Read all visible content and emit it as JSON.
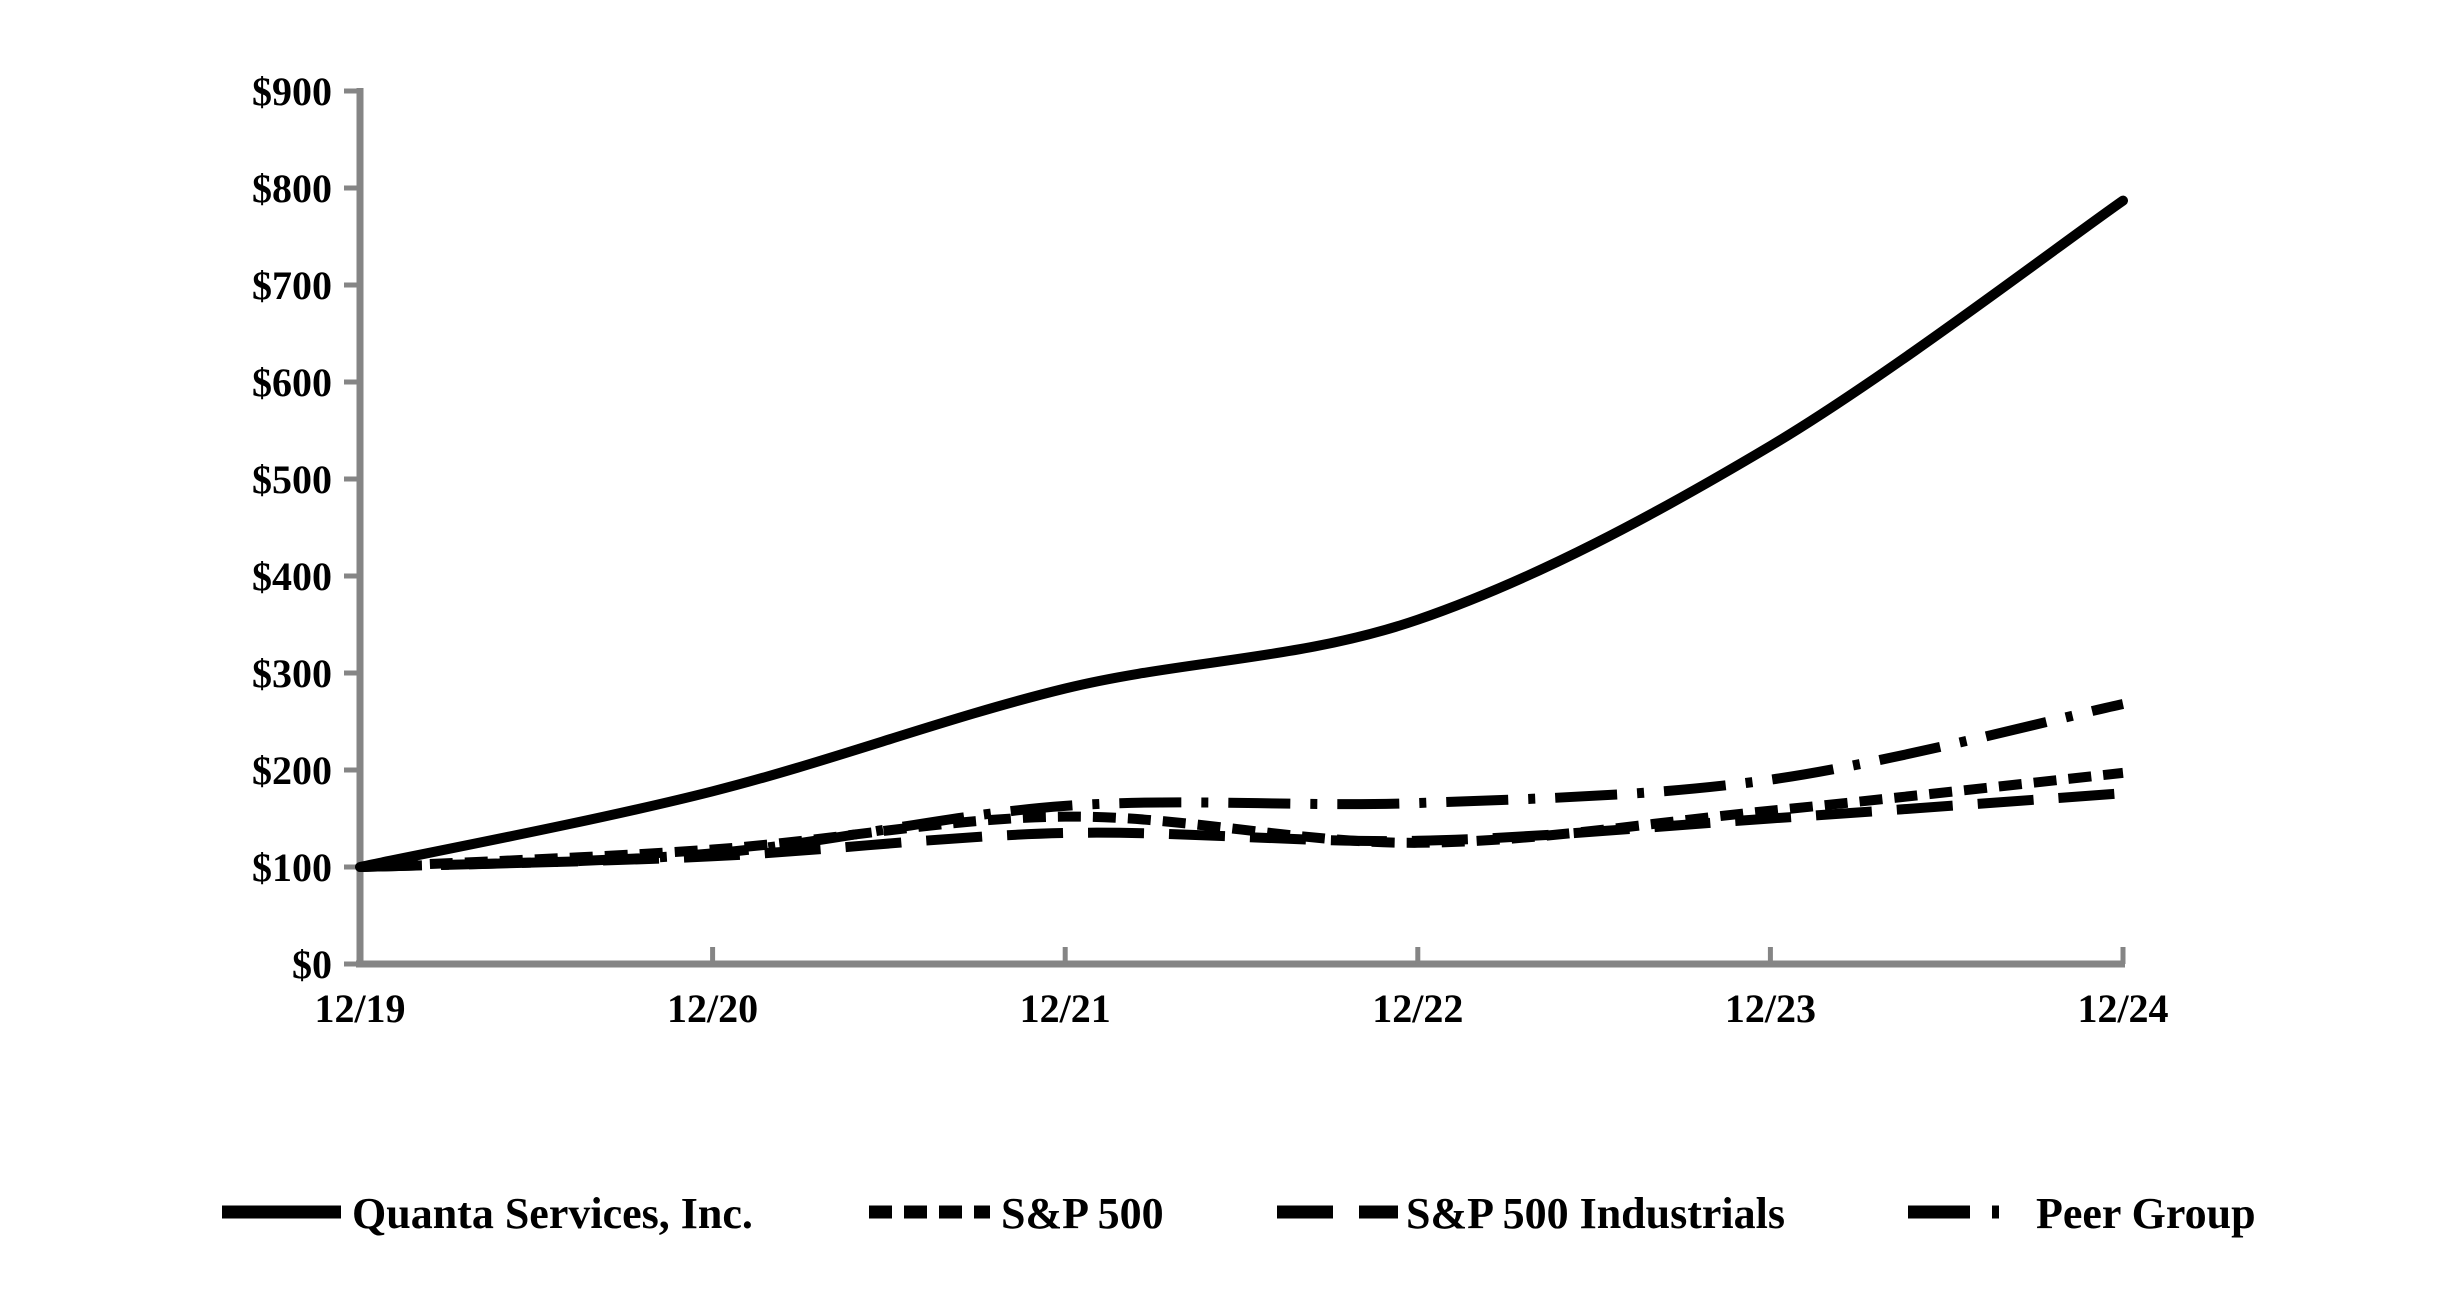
{
  "chart_data": {
    "type": "line",
    "title": "",
    "xlabel": "",
    "ylabel": "",
    "x_categories": [
      "12/19",
      "12/20",
      "12/21",
      "12/22",
      "12/23",
      "12/24"
    ],
    "y_tick_labels": [
      "$0",
      "$100",
      "$200",
      "$300",
      "$400",
      "$500",
      "$600",
      "$700",
      "$800",
      "$900"
    ],
    "ylim": [
      0,
      900
    ],
    "grid": false,
    "legend_position": "bottom",
    "colors": {
      "series": "#000000",
      "axis": "#858585",
      "background": "#ffffff",
      "text": "#000000"
    },
    "series": [
      {
        "name": "Quanta Services, Inc.",
        "style": "solid",
        "values": [
          100,
          178,
          284,
          355,
          534,
          787
        ]
      },
      {
        "name": "S&P 500",
        "style": "short-dash",
        "values": [
          100,
          118,
          152,
          125,
          158,
          197
        ]
      },
      {
        "name": "S&P 500 Industrials",
        "style": "long-dash",
        "values": [
          100,
          111,
          135,
          127,
          150,
          176
        ]
      },
      {
        "name": "Peer Group",
        "style": "dash-dot",
        "values": [
          100,
          114,
          163,
          166,
          190,
          268
        ]
      }
    ]
  }
}
